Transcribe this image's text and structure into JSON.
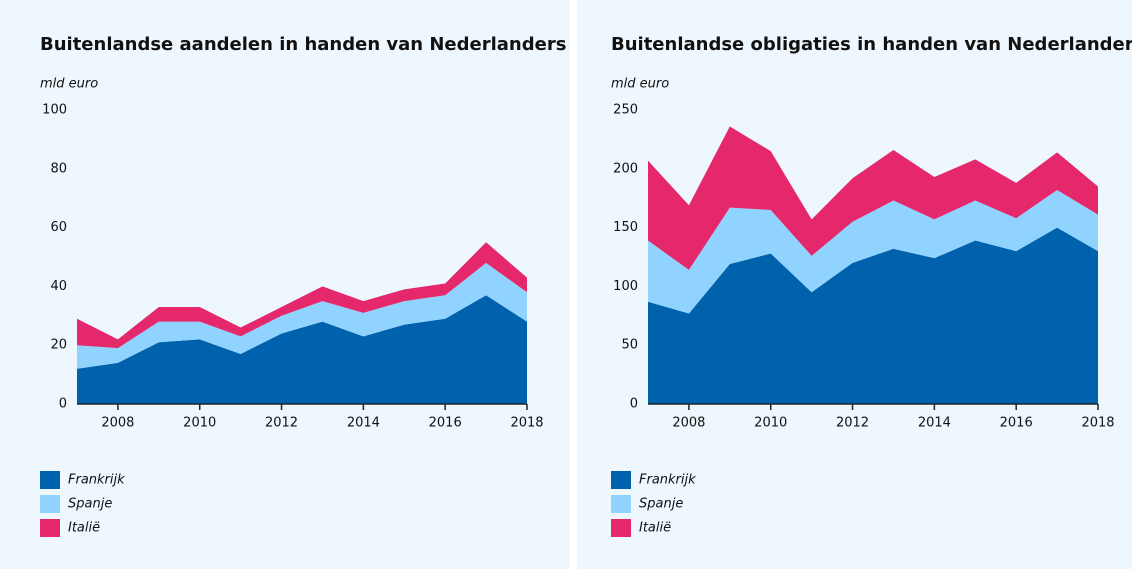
{
  "chart_data": [
    {
      "type": "area",
      "title": "Buitenlandse aandelen in handen van Nederlanders",
      "y_label": "mld euro",
      "x": [
        2007,
        2008,
        2009,
        2010,
        2011,
        2012,
        2013,
        2014,
        2015,
        2016,
        2017,
        2018
      ],
      "xlim": [
        2007,
        2018
      ],
      "xticks": [
        2008,
        2010,
        2012,
        2014,
        2016,
        2018
      ],
      "ylim": [
        0,
        100
      ],
      "yticks": [
        0,
        20,
        40,
        60,
        80,
        100
      ],
      "stacked": true,
      "series": [
        {
          "name": "Frankrijk",
          "color": "#0061ad",
          "values": [
            12,
            14,
            21,
            22,
            17,
            24,
            28,
            23,
            27,
            29,
            37,
            28
          ]
        },
        {
          "name": "Spanje",
          "color": "#8fd3fe",
          "values": [
            8,
            5,
            7,
            6,
            6,
            6,
            7,
            8,
            8,
            8,
            11,
            10
          ]
        },
        {
          "name": "Italië",
          "color": "#e5286c",
          "values": [
            9,
            3,
            5,
            5,
            3,
            3,
            5,
            4,
            4,
            4,
            7,
            5
          ]
        }
      ]
    },
    {
      "type": "area",
      "title": "Buitenlandse obligaties in handen van Nederlanders",
      "y_label": "mld euro",
      "x": [
        2007,
        2008,
        2009,
        2010,
        2011,
        2012,
        2013,
        2014,
        2015,
        2016,
        2017,
        2018
      ],
      "xlim": [
        2007,
        2018
      ],
      "xticks": [
        2008,
        2010,
        2012,
        2014,
        2016,
        2018
      ],
      "ylim": [
        0,
        250
      ],
      "yticks": [
        0,
        50,
        100,
        150,
        200,
        250
      ],
      "stacked": true,
      "series": [
        {
          "name": "Frankrijk",
          "color": "#0061ad",
          "values": [
            87,
            77,
            119,
            128,
            95,
            120,
            132,
            124,
            139,
            130,
            150,
            130
          ]
        },
        {
          "name": "Spanje",
          "color": "#8fd3fe",
          "values": [
            52,
            37,
            48,
            37,
            31,
            35,
            41,
            33,
            34,
            28,
            32,
            31
          ]
        },
        {
          "name": "Italië",
          "color": "#e5286c",
          "values": [
            68,
            55,
            69,
            50,
            31,
            37,
            43,
            36,
            35,
            30,
            32,
            24
          ]
        }
      ]
    }
  ]
}
